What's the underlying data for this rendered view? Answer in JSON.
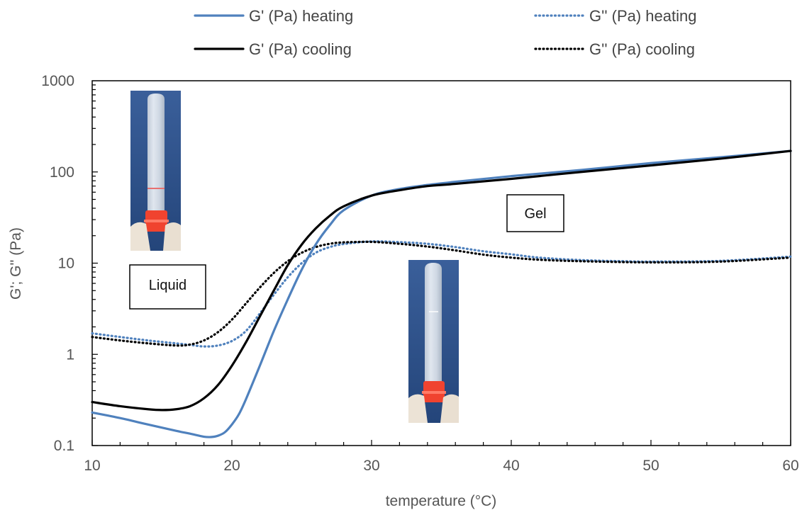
{
  "chart_data": {
    "type": "line",
    "xlabel": "temperature (°C)",
    "ylabel": "G'; G'' (Pa)",
    "xlim": [
      10,
      60
    ],
    "ylim": [
      0.1,
      1000
    ],
    "yscale": "log",
    "x_ticks": [
      10,
      20,
      30,
      40,
      50,
      60
    ],
    "y_ticks": [
      0.1,
      1,
      10,
      100,
      1000
    ],
    "y_tick_labels": [
      "0.1",
      "1",
      "10",
      "100",
      "1000"
    ],
    "grid": false,
    "legend_position": "top",
    "series": [
      {
        "name": "G' (Pa) heating",
        "color": "#4f81bd",
        "style": "solid",
        "x": [
          10,
          12,
          14,
          16,
          17,
          18,
          18.5,
          19,
          19.5,
          20,
          20.5,
          21,
          22,
          23,
          24,
          25,
          26,
          27,
          28,
          30,
          32,
          34,
          36,
          40,
          45,
          50,
          55,
          60
        ],
        "y": [
          0.23,
          0.2,
          0.17,
          0.145,
          0.135,
          0.125,
          0.124,
          0.128,
          0.14,
          0.17,
          0.22,
          0.32,
          0.75,
          1.8,
          4.0,
          8.5,
          16,
          26,
          38,
          55,
          65,
          72,
          78,
          90,
          105,
          125,
          145,
          170
        ]
      },
      {
        "name": "G'' (Pa) heating",
        "color": "#4f81bd",
        "style": "dotted",
        "x": [
          10,
          12,
          14,
          16,
          17,
          18,
          19,
          20,
          21,
          22,
          23,
          24,
          25,
          26,
          27,
          28,
          30,
          32,
          34,
          36,
          38,
          40,
          42,
          45,
          48,
          50,
          55,
          60
        ],
        "y": [
          1.7,
          1.55,
          1.42,
          1.32,
          1.27,
          1.22,
          1.25,
          1.4,
          1.8,
          2.8,
          4.5,
          7.0,
          10,
          13,
          15,
          16.2,
          17.3,
          17.0,
          16.3,
          15,
          13.5,
          12.5,
          11.5,
          10.8,
          10.5,
          10.4,
          10.6,
          11.8
        ]
      },
      {
        "name": "G' (Pa) cooling",
        "color": "#000000",
        "style": "solid",
        "x": [
          10,
          12,
          14,
          15,
          16,
          17,
          18,
          19,
          20,
          21,
          22,
          23,
          24,
          25,
          26,
          27,
          28,
          30,
          32,
          34,
          36,
          40,
          45,
          50,
          55,
          60
        ],
        "y": [
          0.3,
          0.27,
          0.25,
          0.245,
          0.25,
          0.27,
          0.33,
          0.46,
          0.75,
          1.35,
          2.6,
          5.0,
          9.5,
          16,
          24,
          33,
          42,
          55,
          63,
          70,
          74,
          84,
          100,
          118,
          140,
          170
        ]
      },
      {
        "name": "G'' (Pa) cooling",
        "color": "#000000",
        "style": "dotted",
        "x": [
          10,
          12,
          14,
          16,
          17,
          18,
          19,
          20,
          21,
          22,
          23,
          24,
          25,
          26,
          27,
          28,
          30,
          32,
          34,
          36,
          38,
          40,
          42,
          45,
          50,
          55,
          60
        ],
        "y": [
          1.55,
          1.42,
          1.32,
          1.25,
          1.28,
          1.42,
          1.75,
          2.4,
          3.6,
          5.4,
          7.8,
          10.5,
          13,
          15,
          16.3,
          16.9,
          17.1,
          16.3,
          15.2,
          13.8,
          12.4,
          11.5,
          10.9,
          10.5,
          10.2,
          10.4,
          11.5
        ]
      }
    ],
    "annotations": [
      {
        "text": "Liquid"
      },
      {
        "text": "Gel"
      }
    ],
    "images": [
      {
        "name": "vial-liquid-photo"
      },
      {
        "name": "vial-gel-photo"
      }
    ]
  }
}
